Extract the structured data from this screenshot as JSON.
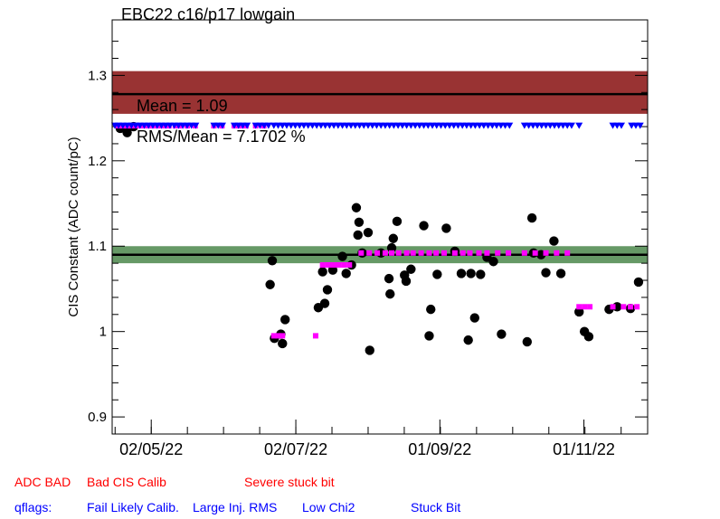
{
  "chart_data": {
    "type": "scatter",
    "title": "EBC22 c16/p17 lowgain",
    "ylabel": "CIS Constant (ADC count/pC)",
    "xlabel": "",
    "ylim": [
      0.88,
      1.365
    ],
    "xlim": [
      0,
      1
    ],
    "y_ticks": [
      0.9,
      1,
      1.1,
      1.2,
      1.3
    ],
    "y_tick_labels": [
      "0.9",
      "1",
      "1.1",
      "1.2",
      "1.3"
    ],
    "x_ticks": [
      {
        "label": "02/05/22",
        "pos": 0.073
      },
      {
        "label": "02/07/22",
        "pos": 0.343
      },
      {
        "label": "01/09/22",
        "pos": 0.612
      },
      {
        "label": "01/11/22",
        "pos": 0.881
      }
    ],
    "mean_line": 1.09,
    "green_band": [
      1.08,
      1.1
    ],
    "red_band": [
      1.255,
      1.305
    ],
    "red_line": 1.278,
    "annotations": {
      "mean": "Mean = 1.09",
      "rms": "RMS/Mean = 7.1702 %"
    },
    "colors": {
      "red_band": "#993333",
      "green_band": "#669966",
      "points": "#000000",
      "magenta": "#ff00ff",
      "blue": "#0000ff",
      "legend_red": "#ff0000",
      "legend_blue": "#0000ff"
    },
    "series": [
      {
        "marker": "circle",
        "values": [
          [
            0.015,
            1.238
          ],
          [
            0.028,
            1.233
          ],
          [
            0.04,
            1.24
          ],
          [
            0.295,
            1.055
          ],
          [
            0.299,
            1.083
          ],
          [
            0.303,
            0.992
          ],
          [
            0.315,
            0.997
          ],
          [
            0.318,
            0.986
          ],
          [
            0.323,
            1.014
          ],
          [
            0.385,
            1.028
          ],
          [
            0.393,
            1.07
          ],
          [
            0.397,
            1.033
          ],
          [
            0.402,
            1.049
          ],
          [
            0.412,
            1.072
          ],
          [
            0.43,
            1.088
          ],
          [
            0.437,
            1.068
          ],
          [
            0.447,
            1.078
          ],
          [
            0.456,
            1.145
          ],
          [
            0.459,
            1.113
          ],
          [
            0.461,
            1.128
          ],
          [
            0.467,
            1.092
          ],
          [
            0.478,
            1.116
          ],
          [
            0.481,
            0.978
          ],
          [
            0.502,
            1.092
          ],
          [
            0.517,
            1.062
          ],
          [
            0.519,
            1.044
          ],
          [
            0.522,
            1.098
          ],
          [
            0.525,
            1.109
          ],
          [
            0.532,
            1.129
          ],
          [
            0.546,
            1.066
          ],
          [
            0.549,
            1.059
          ],
          [
            0.558,
            1.073
          ],
          [
            0.582,
            1.124
          ],
          [
            0.592,
            0.995
          ],
          [
            0.595,
            1.026
          ],
          [
            0.607,
            1.067
          ],
          [
            0.624,
            1.121
          ],
          [
            0.64,
            1.094
          ],
          [
            0.652,
            1.068
          ],
          [
            0.665,
            0.99
          ],
          [
            0.67,
            1.068
          ],
          [
            0.677,
            1.016
          ],
          [
            0.688,
            1.067
          ],
          [
            0.7,
            1.087
          ],
          [
            0.712,
            1.082
          ],
          [
            0.727,
            0.997
          ],
          [
            0.775,
            0.988
          ],
          [
            0.784,
            1.133
          ],
          [
            0.787,
            1.092
          ],
          [
            0.801,
            1.09
          ],
          [
            0.81,
            1.069
          ],
          [
            0.825,
            1.106
          ],
          [
            0.838,
            1.068
          ],
          [
            0.872,
            1.023
          ],
          [
            0.882,
            1.0
          ],
          [
            0.89,
            0.994
          ],
          [
            0.928,
            1.026
          ],
          [
            0.943,
            1.029
          ],
          [
            0.968,
            1.027
          ],
          [
            0.983,
            1.058
          ]
        ]
      },
      {
        "marker": "magenta-square",
        "values": [
          [
            0.012,
            1.241
          ],
          [
            0.02,
            1.241
          ],
          [
            0.028,
            1.241
          ],
          [
            0.036,
            1.241
          ],
          [
            0.046,
            1.241
          ],
          [
            0.056,
            1.241
          ],
          [
            0.066,
            1.241
          ],
          [
            0.076,
            1.241
          ],
          [
            0.086,
            1.241
          ],
          [
            0.096,
            1.241
          ],
          [
            0.106,
            1.241
          ],
          [
            0.118,
            1.241
          ],
          [
            0.128,
            1.241
          ],
          [
            0.14,
            1.241
          ],
          [
            0.155,
            1.241
          ],
          [
            0.19,
            1.241
          ],
          [
            0.205,
            1.241
          ],
          [
            0.228,
            1.241
          ],
          [
            0.238,
            1.241
          ],
          [
            0.25,
            1.241
          ],
          [
            0.268,
            1.241
          ],
          [
            0.283,
            1.241
          ],
          [
            0.302,
            0.995
          ],
          [
            0.31,
            0.995
          ],
          [
            0.318,
            0.995
          ],
          [
            0.38,
            0.995
          ],
          [
            0.393,
            1.078
          ],
          [
            0.403,
            1.078
          ],
          [
            0.413,
            1.078
          ],
          [
            0.423,
            1.078
          ],
          [
            0.433,
            1.078
          ],
          [
            0.443,
            1.078
          ],
          [
            0.465,
            1.092
          ],
          [
            0.48,
            1.092
          ],
          [
            0.495,
            1.092
          ],
          [
            0.51,
            1.092
          ],
          [
            0.522,
            1.092
          ],
          [
            0.535,
            1.092
          ],
          [
            0.55,
            1.092
          ],
          [
            0.562,
            1.092
          ],
          [
            0.577,
            1.092
          ],
          [
            0.592,
            1.092
          ],
          [
            0.605,
            1.092
          ],
          [
            0.62,
            1.092
          ],
          [
            0.64,
            1.092
          ],
          [
            0.655,
            1.092
          ],
          [
            0.668,
            1.092
          ],
          [
            0.685,
            1.092
          ],
          [
            0.7,
            1.092
          ],
          [
            0.72,
            1.092
          ],
          [
            0.74,
            1.092
          ],
          [
            0.77,
            1.092
          ],
          [
            0.79,
            1.092
          ],
          [
            0.81,
            1.092
          ],
          [
            0.83,
            1.092
          ],
          [
            0.85,
            1.092
          ],
          [
            0.872,
            1.029
          ],
          [
            0.882,
            1.029
          ],
          [
            0.892,
            1.029
          ],
          [
            0.935,
            1.029
          ],
          [
            0.955,
            1.029
          ],
          [
            0.968,
            1.029
          ],
          [
            0.98,
            1.029
          ]
        ]
      },
      {
        "marker": "blue-triangle",
        "values": [
          [
            0.005,
            1.241
          ],
          [
            0.012,
            1.241
          ],
          [
            0.02,
            1.241
          ],
          [
            0.028,
            1.241
          ],
          [
            0.036,
            1.241
          ],
          [
            0.044,
            1.241
          ],
          [
            0.052,
            1.241
          ],
          [
            0.06,
            1.241
          ],
          [
            0.068,
            1.241
          ],
          [
            0.076,
            1.241
          ],
          [
            0.084,
            1.241
          ],
          [
            0.092,
            1.241
          ],
          [
            0.1,
            1.241
          ],
          [
            0.108,
            1.241
          ],
          [
            0.116,
            1.241
          ],
          [
            0.124,
            1.241
          ],
          [
            0.132,
            1.241
          ],
          [
            0.14,
            1.241
          ],
          [
            0.148,
            1.241
          ],
          [
            0.156,
            1.241
          ],
          [
            0.19,
            1.241
          ],
          [
            0.198,
            1.241
          ],
          [
            0.206,
            1.241
          ],
          [
            0.228,
            1.241
          ],
          [
            0.236,
            1.241
          ],
          [
            0.244,
            1.241
          ],
          [
            0.252,
            1.241
          ],
          [
            0.268,
            1.241
          ],
          [
            0.276,
            1.241
          ],
          [
            0.284,
            1.241
          ],
          [
            0.292,
            1.241
          ],
          [
            0.302,
            1.241
          ],
          [
            0.31,
            1.241
          ],
          [
            0.318,
            1.241
          ],
          [
            0.326,
            1.241
          ],
          [
            0.334,
            1.241
          ],
          [
            0.342,
            1.241
          ],
          [
            0.35,
            1.241
          ],
          [
            0.358,
            1.241
          ],
          [
            0.366,
            1.241
          ],
          [
            0.374,
            1.241
          ],
          [
            0.382,
            1.241
          ],
          [
            0.39,
            1.241
          ],
          [
            0.398,
            1.241
          ],
          [
            0.406,
            1.241
          ],
          [
            0.414,
            1.241
          ],
          [
            0.422,
            1.241
          ],
          [
            0.43,
            1.241
          ],
          [
            0.438,
            1.241
          ],
          [
            0.446,
            1.241
          ],
          [
            0.454,
            1.241
          ],
          [
            0.462,
            1.241
          ],
          [
            0.47,
            1.241
          ],
          [
            0.478,
            1.241
          ],
          [
            0.486,
            1.241
          ],
          [
            0.494,
            1.241
          ],
          [
            0.502,
            1.241
          ],
          [
            0.51,
            1.241
          ],
          [
            0.518,
            1.241
          ],
          [
            0.526,
            1.241
          ],
          [
            0.534,
            1.241
          ],
          [
            0.542,
            1.241
          ],
          [
            0.55,
            1.241
          ],
          [
            0.558,
            1.241
          ],
          [
            0.566,
            1.241
          ],
          [
            0.574,
            1.241
          ],
          [
            0.582,
            1.241
          ],
          [
            0.59,
            1.241
          ],
          [
            0.598,
            1.241
          ],
          [
            0.606,
            1.241
          ],
          [
            0.614,
            1.241
          ],
          [
            0.622,
            1.241
          ],
          [
            0.63,
            1.241
          ],
          [
            0.638,
            1.241
          ],
          [
            0.646,
            1.241
          ],
          [
            0.654,
            1.241
          ],
          [
            0.662,
            1.241
          ],
          [
            0.67,
            1.241
          ],
          [
            0.678,
            1.241
          ],
          [
            0.686,
            1.241
          ],
          [
            0.694,
            1.241
          ],
          [
            0.702,
            1.241
          ],
          [
            0.71,
            1.241
          ],
          [
            0.718,
            1.241
          ],
          [
            0.726,
            1.241
          ],
          [
            0.734,
            1.241
          ],
          [
            0.742,
            1.241
          ],
          [
            0.77,
            1.241
          ],
          [
            0.778,
            1.241
          ],
          [
            0.786,
            1.241
          ],
          [
            0.794,
            1.241
          ],
          [
            0.802,
            1.241
          ],
          [
            0.81,
            1.241
          ],
          [
            0.818,
            1.241
          ],
          [
            0.826,
            1.241
          ],
          [
            0.834,
            1.241
          ],
          [
            0.842,
            1.241
          ],
          [
            0.85,
            1.241
          ],
          [
            0.858,
            1.241
          ],
          [
            0.872,
            1.241
          ],
          [
            0.935,
            1.241
          ],
          [
            0.943,
            1.241
          ],
          [
            0.951,
            1.241
          ],
          [
            0.97,
            1.241
          ],
          [
            0.978,
            1.241
          ],
          [
            0.986,
            1.241
          ]
        ]
      }
    ]
  },
  "legend": {
    "row1": [
      {
        "text": "ADC BAD",
        "color": "#ff0000"
      },
      {
        "text": "Bad CIS Calib",
        "color": "#ff0000"
      },
      {
        "text": "Severe stuck bit",
        "color": "#ff0000"
      }
    ],
    "row2": [
      {
        "text": "qflags:",
        "color": "#0000ff"
      },
      {
        "text": "Fail Likely Calib.",
        "color": "#0000ff"
      },
      {
        "text": "Large Inj. RMS",
        "color": "#0000ff"
      },
      {
        "text": "Low Chi2",
        "color": "#0000ff"
      },
      {
        "text": "Stuck Bit",
        "color": "#0000ff"
      }
    ]
  }
}
